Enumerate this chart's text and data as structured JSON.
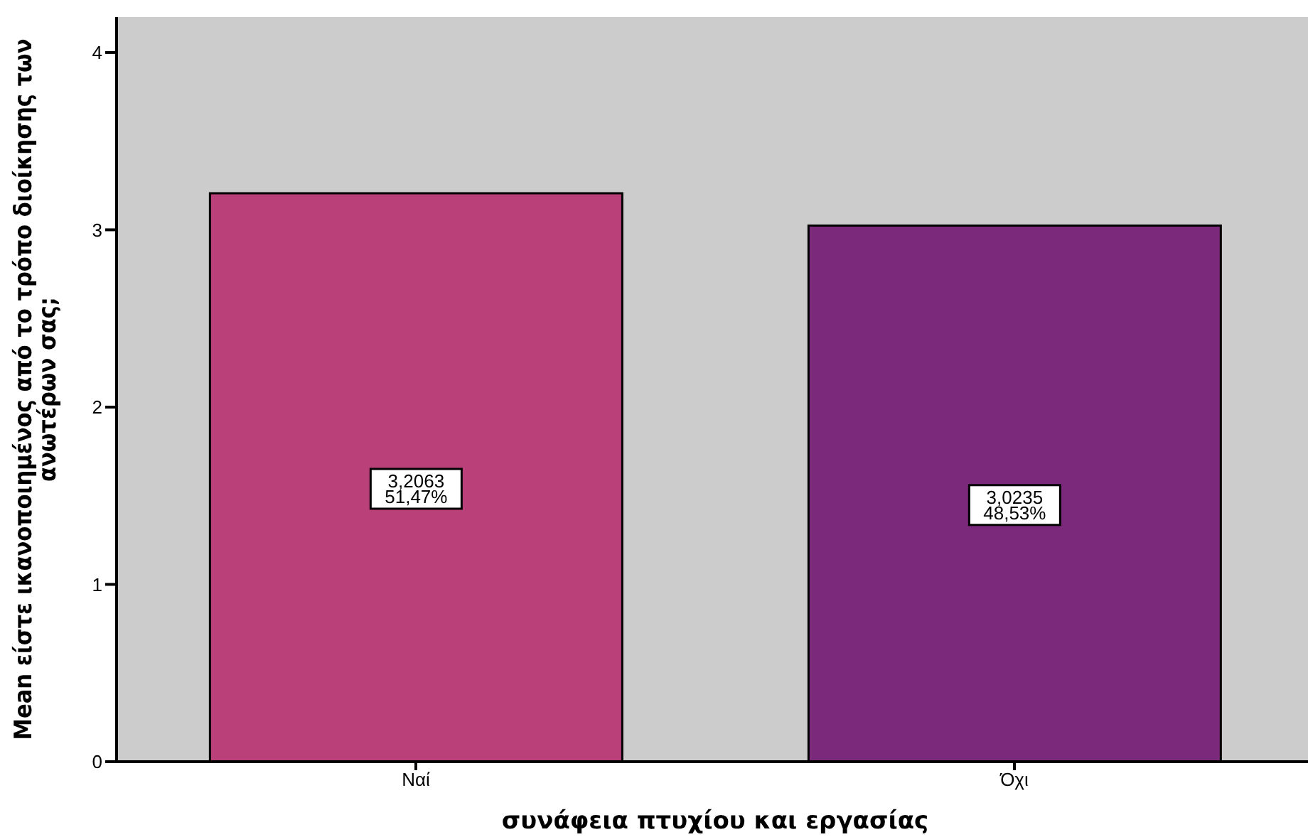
{
  "chart_data": {
    "type": "bar",
    "xlabel": "συνάφεια πτυχίου και εργασίας",
    "ylabel": "Mean είστε ικανοποιημένος από το τρόπο διοίκησης των\nανωτέρων σας;",
    "categories": [
      "Ναί",
      "Όχι"
    ],
    "values": [
      3.2063,
      3.0235
    ],
    "colors": [
      "#b94079",
      "#7b297b"
    ],
    "value_labels": [
      "3,2063\n51,47%",
      "3,0235\n48,53%"
    ],
    "ylim": [
      0,
      4.2
    ],
    "yticks": [
      0,
      1,
      2,
      3,
      4
    ],
    "grid": false
  }
}
